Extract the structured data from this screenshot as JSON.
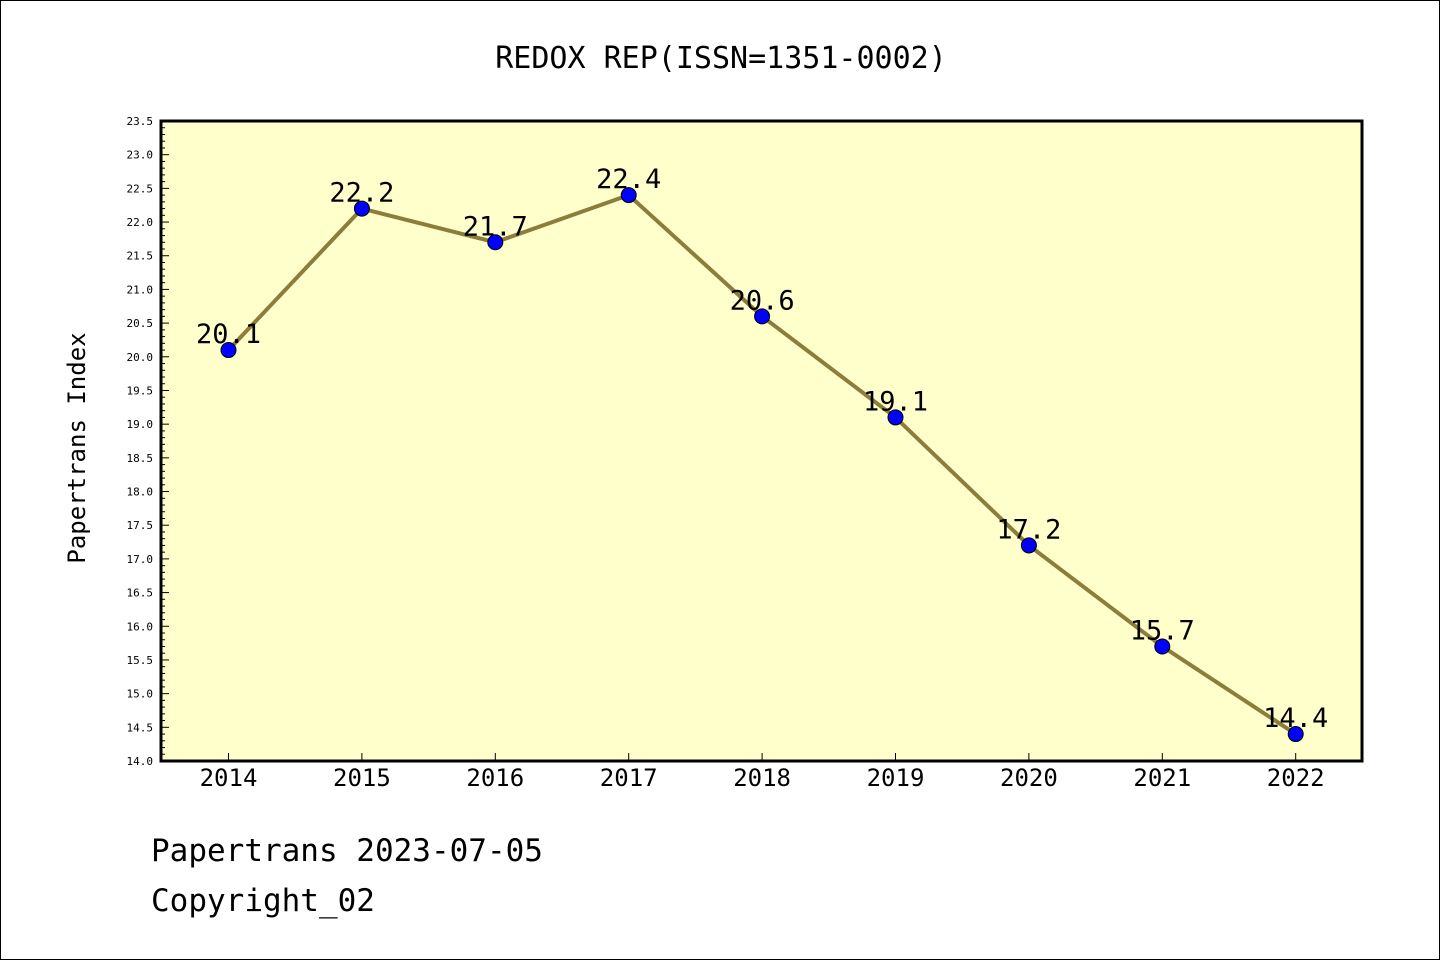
{
  "chart_data": {
    "type": "line",
    "title": "REDOX REP(ISSN=1351-0002)",
    "xlabel": "",
    "ylabel": "Papertrans Index",
    "categories": [
      "2014",
      "2015",
      "2016",
      "2017",
      "2018",
      "2019",
      "2020",
      "2021",
      "2022"
    ],
    "series": [
      {
        "values": [
          20.1,
          22.2,
          21.7,
          22.4,
          20.6,
          19.1,
          17.2,
          15.7,
          14.4
        ],
        "labels": [
          "20.1",
          "22.2",
          "21.7",
          "22.4",
          "20.6",
          "19.1",
          "17.2",
          "15.7",
          "14.4"
        ]
      }
    ],
    "ylim": [
      14.0,
      23.5
    ],
    "yticks": [
      "14.0",
      "14.5",
      "15.0",
      "15.5",
      "16.0",
      "16.5",
      "17.0",
      "17.5",
      "18.0",
      "18.5",
      "19.0",
      "19.5",
      "20.0",
      "20.5",
      "21.0",
      "21.5",
      "22.0",
      "22.5",
      "23.0",
      "23.5"
    ],
    "grid": false,
    "colors": {
      "plot_background": "#ffffcc",
      "line": "#8c7d3a",
      "marker": "#0000ff"
    }
  },
  "footer": {
    "line1": "Papertrans 2023-07-05",
    "line2": "Copyright_02"
  }
}
